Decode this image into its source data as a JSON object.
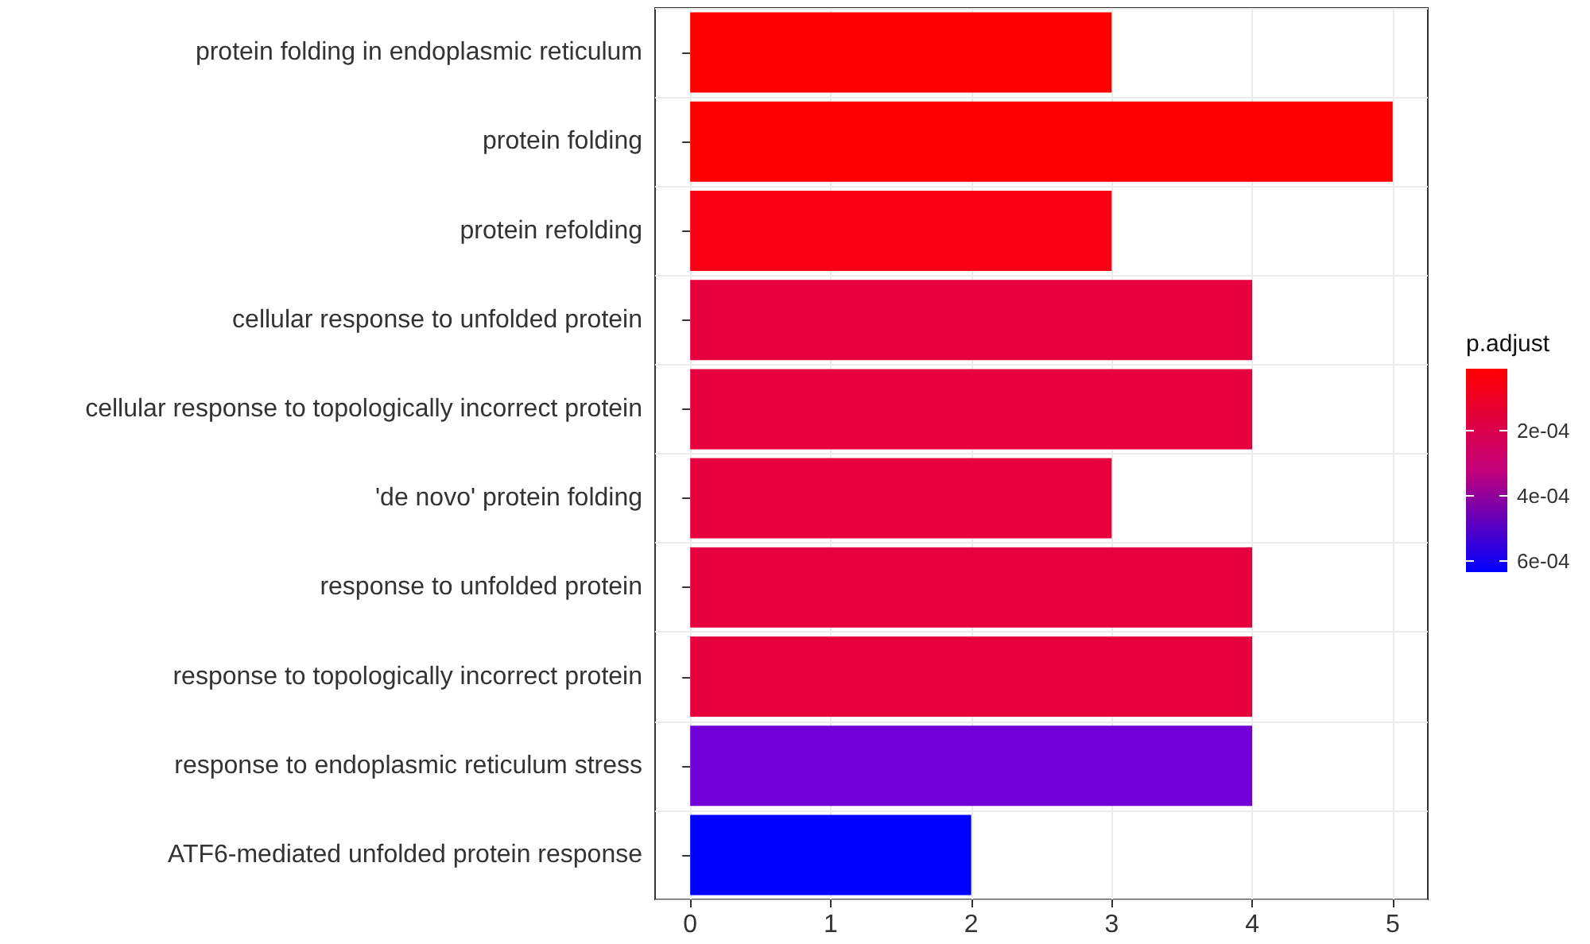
{
  "chart_data": {
    "type": "bar",
    "orientation": "horizontal",
    "categories": [
      "protein folding in endoplasmic reticulum",
      "protein folding",
      "protein refolding",
      "cellular response to unfolded protein",
      "cellular response to topologically incorrect protein",
      "'de novo' protein folding",
      "response to unfolded protein",
      "response to topologically incorrect protein",
      "response to endoplasmic reticulum stress",
      "ATF6-mediated unfolded protein response"
    ],
    "values": [
      3,
      5,
      3,
      4,
      4,
      3,
      4,
      4,
      4,
      2
    ],
    "colors": [
      "#ff0000",
      "#ff0000",
      "#fa0014",
      "#e6003d",
      "#e6003d",
      "#e6003d",
      "#e6003d",
      "#e6003d",
      "#7400d9",
      "#0000ff"
    ],
    "xlim": [
      -0.25,
      5.25
    ],
    "xticks": [
      0,
      1,
      2,
      3,
      4,
      5
    ],
    "grid": true,
    "clabel": "p.adjust",
    "clim": [
      1e-05,
      0.000634
    ],
    "cticks": [
      {
        "value": 0.0002,
        "label": "2e-04"
      },
      {
        "value": 0.0004,
        "label": "4e-04"
      },
      {
        "value": 0.0006,
        "label": "6e-04"
      }
    ]
  }
}
